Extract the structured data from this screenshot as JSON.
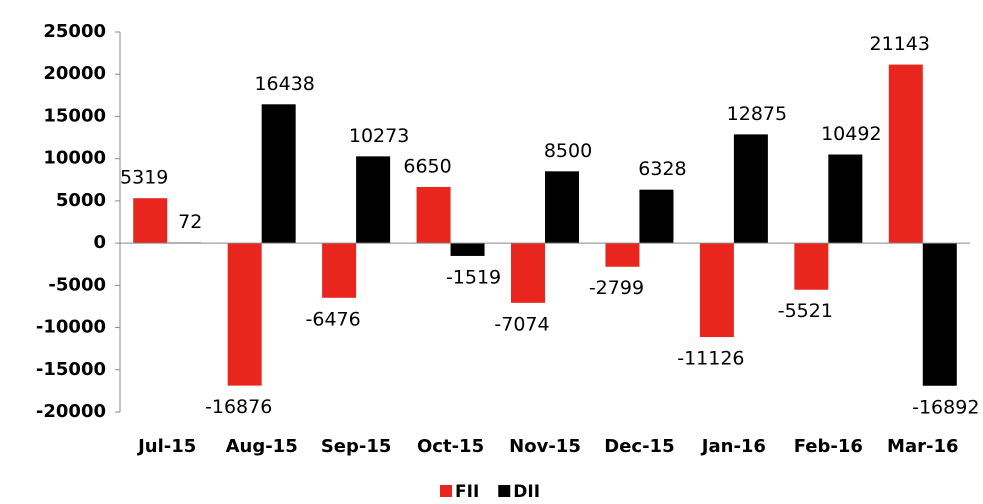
{
  "chart_data": {
    "type": "bar",
    "categories": [
      "Jul-15",
      "Aug-15",
      "Sep-15",
      "Oct-15",
      "Nov-15",
      "Dec-15",
      "Jan-16",
      "Feb-16",
      "Mar-16"
    ],
    "series": [
      {
        "name": "FII",
        "color": "#e8261d",
        "values": [
          5319,
          -16876,
          -6476,
          6650,
          -7074,
          -2799,
          -11126,
          -5521,
          21143
        ]
      },
      {
        "name": "DII",
        "color": "#000000",
        "values": [
          72,
          16438,
          10273,
          -1519,
          8500,
          6328,
          12875,
          10492,
          -16892
        ]
      }
    ],
    "ylim": [
      -20000,
      25000
    ],
    "yticks": [
      -20000,
      -15000,
      -10000,
      -5000,
      0,
      5000,
      10000,
      15000,
      20000,
      25000
    ],
    "grid": false,
    "legend": "bottom"
  }
}
